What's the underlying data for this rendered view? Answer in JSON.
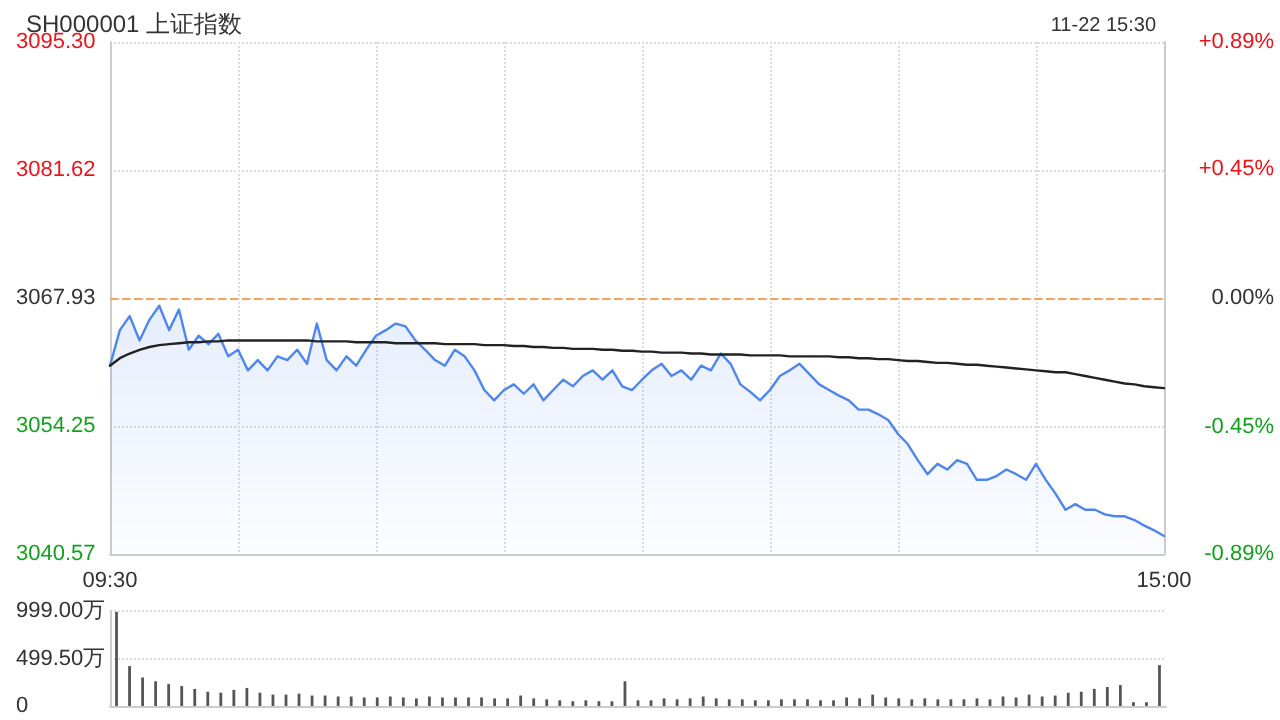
{
  "chart_data": [
    {
      "type": "area",
      "title": "SH000001 上证指数",
      "subtitle": "11-22 15:30",
      "categories": [
        "09:30",
        null,
        null,
        null,
        null,
        null,
        null,
        null,
        null,
        null,
        null,
        null,
        null,
        null,
        null,
        null,
        null,
        null,
        null,
        null,
        null,
        null,
        null,
        null,
        null,
        null,
        null,
        null,
        null,
        null,
        null,
        null,
        null,
        null,
        null,
        null,
        null,
        null,
        null,
        null,
        null,
        null,
        null,
        null,
        null,
        null,
        null,
        null,
        null,
        null,
        null,
        null,
        null,
        null,
        null,
        null,
        null,
        null,
        null,
        null,
        null,
        null,
        null,
        null,
        null,
        null,
        null,
        null,
        null,
        null,
        null,
        null,
        null,
        null,
        null,
        null,
        null,
        null,
        null,
        null,
        null,
        null,
        null,
        null,
        null,
        null,
        null,
        null,
        null,
        null,
        null,
        null,
        null,
        null,
        null,
        null,
        null,
        null,
        null,
        null,
        null,
        null,
        null,
        null,
        null,
        null,
        null,
        "15:00"
      ],
      "ylim": [
        3040.57,
        3095.3
      ],
      "yticks": [
        {
          "value": 3040.57,
          "label": "3040.57"
        },
        {
          "value": 3054.25,
          "label": "3054.25"
        },
        {
          "value": 3067.93,
          "label": "3067.93"
        },
        {
          "value": 3081.62,
          "label": "3081.62"
        },
        {
          "value": 3095.3,
          "label": "3095.30"
        }
      ],
      "y2lim": [
        -0.89,
        0.89
      ],
      "y2ticks": [
        {
          "value": -0.89,
          "label": "-0.89%"
        },
        {
          "value": -0.45,
          "label": "-0.45%"
        },
        {
          "value": 0,
          "label": "0.00%"
        },
        {
          "value": 0.45,
          "label": "+0.45%"
        },
        {
          "value": 0.89,
          "label": "+0.89%"
        }
      ],
      "grid": true,
      "marker": "none",
      "line_style": "solid",
      "ref_lines": [
        {
          "axis": "y",
          "value": 3067.93,
          "color": "#f4a460",
          "line_style": "dashed"
        }
      ],
      "series": [
        {
          "color": "#4f86ec",
          "values": [
            3060.7,
            3064.5,
            3066.0,
            3063.4,
            3065.6,
            3067.1,
            3064.5,
            3066.7,
            3062.4,
            3063.9,
            3063.0,
            3064.1,
            3061.7,
            3062.4,
            3060.2,
            3061.3,
            3060.2,
            3061.7,
            3061.3,
            3062.4,
            3060.9,
            3065.2,
            3061.3,
            3060.2,
            3061.7,
            3060.7,
            3062.4,
            3063.9,
            3064.5,
            3065.2,
            3064.9,
            3063.4,
            3062.4,
            3061.3,
            3060.7,
            3062.4,
            3061.7,
            3060.2,
            3058.1,
            3057.0,
            3058.1,
            3058.7,
            3057.7,
            3058.7,
            3057.0,
            3058.1,
            3059.2,
            3058.5,
            3059.6,
            3060.2,
            3059.2,
            3060.2,
            3058.5,
            3058.1,
            3059.2,
            3060.2,
            3060.9,
            3059.6,
            3060.2,
            3059.2,
            3060.7,
            3060.2,
            3062.0,
            3060.9,
            3058.7,
            3057.9,
            3057.0,
            3058.1,
            3059.6,
            3060.2,
            3060.9,
            3059.8,
            3058.7,
            3058.1,
            3057.5,
            3057.0,
            3056.0,
            3056.0,
            3055.5,
            3054.9,
            3053.4,
            3052.3,
            3050.6,
            3049.1,
            3050.2,
            3049.6,
            3050.6,
            3050.2,
            3048.5,
            3048.5,
            3048.9,
            3049.6,
            3049.1,
            3048.5,
            3050.2,
            3048.5,
            3047.0,
            3045.3,
            3045.9,
            3045.3,
            3045.3,
            3044.8,
            3044.6,
            3044.6,
            3044.2,
            3043.6,
            3043.1,
            3042.5
          ]
        },
        {
          "type": "line",
          "color": "#222222",
          "values": [
            3060.7,
            3061.5,
            3062.0,
            3062.4,
            3062.7,
            3062.9,
            3063.0,
            3063.1,
            3063.2,
            3063.2,
            3063.3,
            3063.3,
            3063.4,
            3063.4,
            3063.4,
            3063.4,
            3063.4,
            3063.4,
            3063.4,
            3063.4,
            3063.4,
            3063.3,
            3063.3,
            3063.3,
            3063.3,
            3063.2,
            3063.2,
            3063.2,
            3063.2,
            3063.1,
            3063.1,
            3063.1,
            3063.1,
            3063.1,
            3063.0,
            3063.0,
            3063.0,
            3063.0,
            3062.9,
            3062.9,
            3062.9,
            3062.8,
            3062.8,
            3062.7,
            3062.7,
            3062.6,
            3062.6,
            3062.5,
            3062.5,
            3062.5,
            3062.4,
            3062.4,
            3062.3,
            3062.3,
            3062.2,
            3062.2,
            3062.1,
            3062.1,
            3062.1,
            3062.0,
            3062.0,
            3061.9,
            3061.9,
            3061.9,
            3061.9,
            3061.8,
            3061.8,
            3061.8,
            3061.8,
            3061.7,
            3061.7,
            3061.7,
            3061.7,
            3061.7,
            3061.6,
            3061.6,
            3061.5,
            3061.5,
            3061.4,
            3061.4,
            3061.3,
            3061.2,
            3061.2,
            3061.1,
            3061.0,
            3061.0,
            3060.9,
            3060.8,
            3060.8,
            3060.7,
            3060.6,
            3060.5,
            3060.4,
            3060.3,
            3060.2,
            3060.1,
            3060.0,
            3060.0,
            3059.8,
            3059.6,
            3059.4,
            3059.2,
            3059.0,
            3058.8,
            3058.7,
            3058.5,
            3058.4,
            3058.3
          ]
        }
      ]
    },
    {
      "type": "bar",
      "color": "#555555",
      "ylim": [
        0,
        999
      ],
      "yticks": [
        {
          "value": 0,
          "label": "0"
        },
        {
          "value": 499.5,
          "label": "499.50万"
        },
        {
          "value": 999,
          "label": "999.00万"
        }
      ],
      "grid": "y",
      "tick_labels": "y",
      "categories": [
        null,
        null,
        null,
        null,
        null,
        null,
        null,
        null,
        null,
        null,
        null,
        null,
        null,
        null,
        null,
        null,
        null,
        null,
        null,
        null,
        null,
        null,
        null,
        null,
        null,
        null,
        null,
        null,
        null,
        null,
        null,
        null,
        null,
        null,
        null,
        null,
        null,
        null,
        null,
        null,
        null,
        null,
        null,
        null,
        null,
        null,
        null,
        null,
        null,
        null,
        null,
        null,
        null,
        null,
        null,
        null,
        null,
        null,
        null,
        null,
        null,
        null,
        null,
        null,
        null,
        null,
        null,
        null,
        null,
        null,
        null,
        null,
        null,
        null,
        null,
        null,
        null,
        null,
        null,
        null,
        null
      ],
      "values": [
        990,
        420,
        300,
        260,
        230,
        210,
        180,
        150,
        140,
        170,
        190,
        140,
        120,
        120,
        130,
        110,
        110,
        100,
        100,
        90,
        90,
        100,
        90,
        80,
        100,
        90,
        90,
        90,
        90,
        80,
        80,
        110,
        80,
        70,
        60,
        50,
        60,
        50,
        50,
        260,
        60,
        60,
        80,
        70,
        80,
        100,
        80,
        70,
        70,
        60,
        60,
        70,
        70,
        70,
        60,
        60,
        90,
        80,
        120,
        90,
        80,
        70,
        80,
        70,
        70,
        70,
        80,
        70,
        100,
        90,
        120,
        100,
        110,
        140,
        150,
        180,
        200,
        220,
        40,
        40,
        430
      ]
    }
  ]
}
